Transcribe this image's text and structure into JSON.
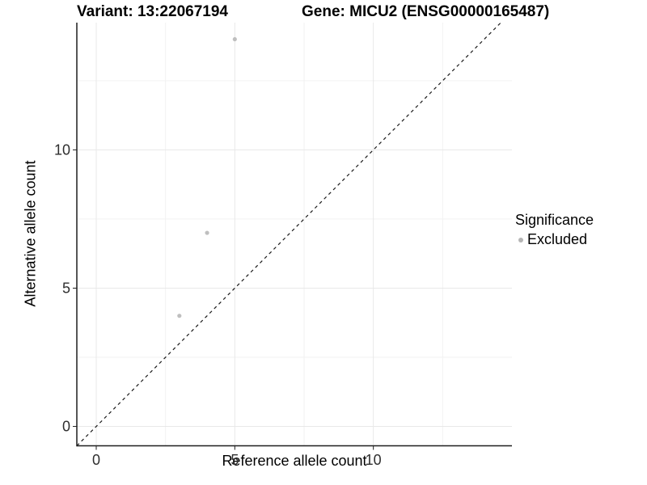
{
  "chart_data": {
    "type": "scatter",
    "title_left": "Variant: 13:22067194",
    "title_right": "Gene: MICU2 (ENSG00000165487)",
    "xlabel": "Reference allele count",
    "ylabel": "Alternative allele count",
    "xlim": [
      -0.7,
      15.0
    ],
    "ylim": [
      -0.7,
      14.6
    ],
    "x_major_ticks": [
      0,
      5,
      10
    ],
    "y_major_ticks": [
      0,
      5,
      10
    ],
    "x_minor_gridlines": [
      2.5,
      7.5,
      12.5
    ],
    "y_minor_gridlines": [
      2.5,
      7.5,
      12.5
    ],
    "grid": "on",
    "legend_position": "right",
    "identity_line": {
      "style": "dashed",
      "x1": -0.7,
      "y1": -0.7,
      "x2": 14.6,
      "y2": 14.6
    },
    "series": [
      {
        "name": "Excluded",
        "color": "#bfbfbf",
        "points": [
          {
            "x": 3,
            "y": 4
          },
          {
            "x": 4,
            "y": 7
          },
          {
            "x": 5,
            "y": 14
          }
        ]
      }
    ],
    "legend": {
      "title": "Significance",
      "entries": [
        {
          "label": "Excluded",
          "color": "#b5b5b5",
          "marker": "circle"
        }
      ]
    },
    "colors": {
      "axis_line": "#1f1f1f",
      "identity_line": "#1a1a1a",
      "major_grid": "#e8e8e8",
      "minor_grid": "#f2f2f2",
      "tick_text": "#2e2e2e",
      "background": "#ffffff"
    }
  }
}
